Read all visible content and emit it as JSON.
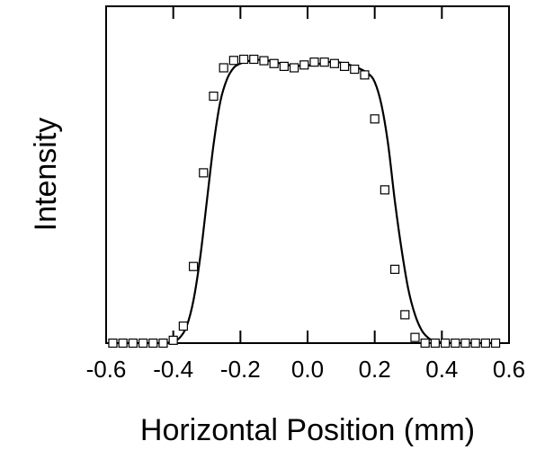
{
  "chart_data": {
    "type": "line",
    "title": "",
    "xlabel": "Horizontal Position (mm)",
    "ylabel": "Intensity",
    "xlim": [
      -0.6,
      0.6
    ],
    "ylim": [
      0,
      1.0
    ],
    "xticks": [
      "-0.6",
      "-0.4",
      "-0.2",
      "0.0",
      "0.2",
      "0.4",
      "0.6"
    ],
    "yticks_labeled": false,
    "grid": false,
    "legend": "none",
    "series": [
      {
        "kind": "measured",
        "marker": "open-square",
        "x": [
          -0.58,
          -0.55,
          -0.52,
          -0.49,
          -0.46,
          -0.43,
          -0.4,
          -0.37,
          -0.34,
          -0.31,
          -0.28,
          -0.25,
          -0.22,
          -0.19,
          -0.16,
          -0.13,
          -0.1,
          -0.07,
          -0.04,
          -0.01,
          0.02,
          0.05,
          0.08,
          0.11,
          0.14,
          0.17,
          0.2,
          0.23,
          0.26,
          0.29,
          0.32,
          0.35,
          0.38,
          0.41,
          0.44,
          0.47,
          0.5,
          0.53,
          0.56
        ],
        "y": [
          0.0,
          0.0,
          0.0,
          0.0,
          0.0,
          0.0,
          0.01,
          0.06,
          0.27,
          0.6,
          0.87,
          0.97,
          0.996,
          1.0,
          1.0,
          0.995,
          0.985,
          0.975,
          0.97,
          0.98,
          0.99,
          0.99,
          0.985,
          0.975,
          0.965,
          0.945,
          0.79,
          0.54,
          0.26,
          0.1,
          0.02,
          0.0,
          0.0,
          0.0,
          0.0,
          0.0,
          0.0,
          0.0,
          0.0
        ]
      },
      {
        "kind": "fit",
        "x": [
          -0.58,
          -0.5,
          -0.45,
          -0.42,
          -0.4,
          -0.38,
          -0.36,
          -0.34,
          -0.32,
          -0.3,
          -0.28,
          -0.26,
          -0.24,
          -0.22,
          -0.2,
          -0.18,
          -0.15,
          -0.12,
          -0.1,
          -0.07,
          -0.05,
          -0.02,
          0.0,
          0.03,
          0.06,
          0.09,
          0.12,
          0.15,
          0.18,
          0.2,
          0.22,
          0.24,
          0.26,
          0.28,
          0.3,
          0.32,
          0.34,
          0.36,
          0.38,
          0.4,
          0.42,
          0.45,
          0.5,
          0.56
        ],
        "y": [
          0.0,
          0.0,
          0.0,
          0.001,
          0.005,
          0.02,
          0.06,
          0.15,
          0.3,
          0.5,
          0.7,
          0.85,
          0.93,
          0.97,
          0.985,
          0.993,
          0.998,
          0.996,
          0.99,
          0.983,
          0.978,
          0.977,
          0.978,
          0.983,
          0.99,
          0.99,
          0.982,
          0.97,
          0.95,
          0.92,
          0.84,
          0.7,
          0.5,
          0.33,
          0.19,
          0.1,
          0.045,
          0.018,
          0.006,
          0.002,
          0.0005,
          0.0,
          0.0,
          0.0
        ]
      }
    ]
  }
}
